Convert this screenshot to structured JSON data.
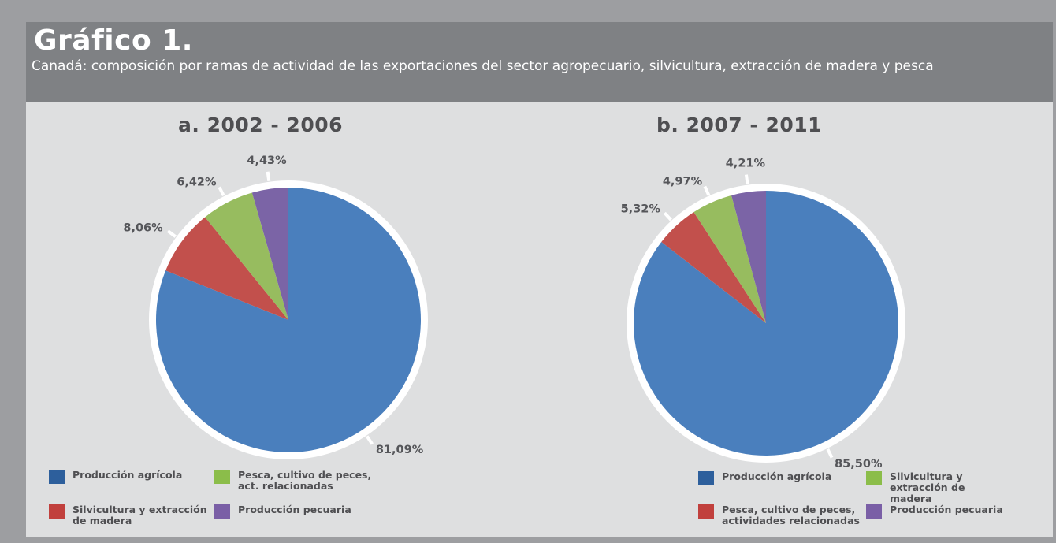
{
  "header": {
    "title": "Gráfico 1.",
    "subtitle": "Canadá: composición por ramas de actividad de las exportaciones del sector agropecuario, silvicultura, extracción de madera y pesca"
  },
  "colors": {
    "blue": "#4a7fbd",
    "red": "#c2504c",
    "green": "#97bc5f",
    "purple": "#7b64a6",
    "legend_blue": "#2d5f9c",
    "legend_red": "#c1403d",
    "legend_green": "#8bbd4a",
    "legend_purple": "#7a5fa6"
  },
  "chart_data": [
    {
      "type": "pie",
      "title": "a. 2002 - 2006",
      "slices": [
        {
          "label": "Producción agrícola",
          "value": 81.09,
          "value_label": "81,09%",
          "color": "#4a7fbd"
        },
        {
          "label": "Silvicultura y extracción de madera",
          "value": 8.06,
          "value_label": "8,06%",
          "color": "#c2504c"
        },
        {
          "label": "Pesca, cultivo de peces, act. relacionadas",
          "value": 6.42,
          "value_label": "6,42%",
          "color": "#97bc5f"
        },
        {
          "label": "Producción pecuaria",
          "value": 4.43,
          "value_label": "4,43%",
          "color": "#7b64a6"
        }
      ],
      "legend": [
        {
          "label": "Producción agrícola",
          "color": "#2d5f9c"
        },
        {
          "label": "Pesca, cultivo de peces, act. relacionadas",
          "color": "#8bbd4a"
        },
        {
          "label": "Silvicultura y extracción de madera",
          "color": "#c1403d"
        },
        {
          "label": "Producción pecuaria",
          "color": "#7a5fa6"
        }
      ]
    },
    {
      "type": "pie",
      "title": "b. 2007 - 2011",
      "slices": [
        {
          "label": "Producción agrícola",
          "value": 85.5,
          "value_label": "85,50%",
          "color": "#4a7fbd"
        },
        {
          "label": "Pesca, cultivo de peces, actividades relacionadas",
          "value": 5.32,
          "value_label": "5,32%",
          "color": "#c2504c"
        },
        {
          "label": "Silvicultura y extracción de madera",
          "value": 4.97,
          "value_label": "4,97%",
          "color": "#97bc5f"
        },
        {
          "label": "Producción pecuaria",
          "value": 4.21,
          "value_label": "4,21%",
          "color": "#7b64a6"
        }
      ],
      "legend": [
        {
          "label": "Producción agrícola",
          "color": "#2d5f9c"
        },
        {
          "label": "Silvicultura y extracción de madera",
          "color": "#8bbd4a"
        },
        {
          "label": "Pesca, cultivo de peces, actividades relacionadas",
          "color": "#c1403d"
        },
        {
          "label": "Producción pecuaria",
          "color": "#7a5fa6"
        }
      ]
    }
  ]
}
